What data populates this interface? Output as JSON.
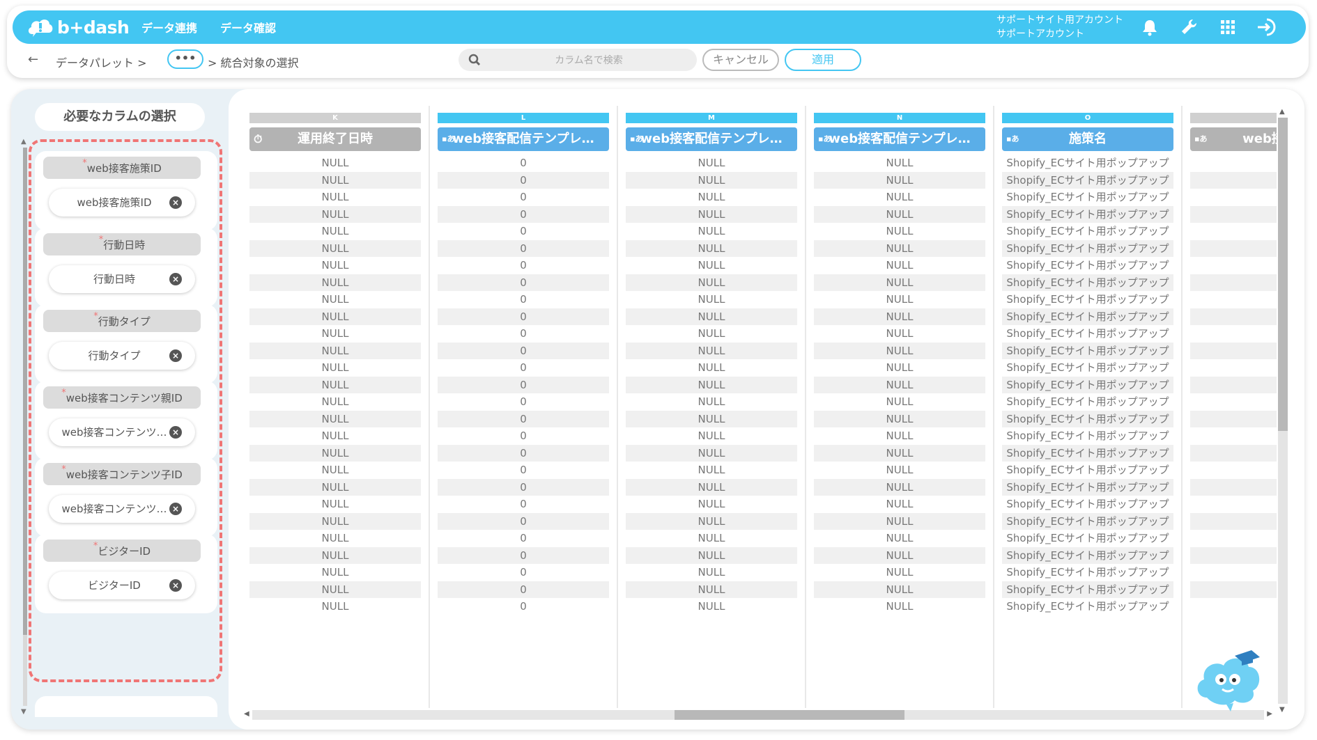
{
  "header": {
    "logo_text": "b+dash",
    "nav": [
      "データ連携",
      "データ確認"
    ],
    "account_line1": "サポートサイト用アカウント",
    "account_line2": "サポートアカウント",
    "icons": [
      "bell-icon",
      "wrench-icon",
      "grid-apps-icon",
      "logout-icon"
    ],
    "accent_color": "#43c6f2"
  },
  "subbar": {
    "back_symbol": "←",
    "crumb_first": "データパレット >",
    "crumb_more": "•••",
    "crumb_last": "> 統合対象の選択",
    "search_placeholder": "カラム名で検索",
    "cancel_label": "キャンセル",
    "apply_label": "適用"
  },
  "left_panel": {
    "title": "必要なカラムの選択",
    "items": [
      {
        "label": "web接客施策ID",
        "chip": "web接客施策ID"
      },
      {
        "label": "行動日時",
        "chip": "行動日時"
      },
      {
        "label": "行動タイプ",
        "chip": "行動タイプ"
      },
      {
        "label": "web接客コンテンツ親ID",
        "chip": "web接客コンテンツ…"
      },
      {
        "label": "web接客コンテンツ子ID",
        "chip": "web接客コンテンツ…"
      },
      {
        "label": "ビジターID",
        "chip": "ビジターID"
      }
    ],
    "required_mark": "*",
    "remove_symbol": "×",
    "highlight_color": "#f07575"
  },
  "grid": {
    "columns": [
      {
        "letter": "K",
        "title": "運用終了日時",
        "type_icon": "clock-icon",
        "active": false,
        "value": "NULL"
      },
      {
        "letter": "L",
        "title": "web接客配信テンプレ…",
        "type_icon": "text-type-icon",
        "type_mark": "▪あ",
        "active": true,
        "value": "0"
      },
      {
        "letter": "M",
        "title": "web接客配信テンプレ…",
        "type_icon": "text-type-icon",
        "type_mark": "▪あ",
        "active": true,
        "value": "NULL"
      },
      {
        "letter": "N",
        "title": "web接客配信テンプレ…",
        "type_icon": "text-type-icon",
        "type_mark": "▪あ",
        "active": true,
        "value": "NULL"
      },
      {
        "letter": "O",
        "title": "施策名",
        "type_icon": "text-type-icon",
        "type_mark": "▪あ",
        "active": true,
        "value": "Shopify_ECサイト用ポップアップ"
      },
      {
        "letter": "",
        "title": "web接客コ",
        "type_icon": "text-type-icon",
        "type_mark": "▪あ",
        "active": false,
        "value": ""
      }
    ],
    "row_count": 27,
    "active_header_color": "#5aaee8",
    "inactive_header_color": "#b3b3b3"
  }
}
